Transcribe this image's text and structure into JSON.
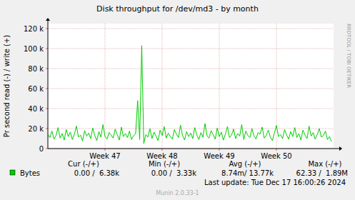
{
  "chart_data": {
    "type": "line",
    "title": "Disk throughput for /dev/md3 - by month",
    "y_label": "Pr second read (-) / write (+)",
    "x": [
      0,
      0.25,
      0.5,
      0.75,
      1,
      1.25,
      1.5,
      1.75,
      2,
      2.25,
      2.5,
      2.75,
      3,
      3.25,
      3.5,
      3.75,
      4,
      4.25,
      4.5,
      4.75,
      5,
      5.25,
      5.5,
      5.75,
      6,
      6.25,
      6.5,
      6.75,
      7,
      7.25,
      7.5,
      7.75,
      8,
      8.25,
      8.5,
      8.75,
      9,
      9.25,
      9.5,
      9.75,
      10,
      10.25,
      10.5,
      10.75,
      11,
      11.25,
      11.5,
      11.75,
      12,
      12.25,
      12.5,
      12.75,
      13,
      13.25,
      13.5,
      13.75,
      14,
      14.25,
      14.5,
      14.75,
      15,
      15.25,
      15.5,
      15.75,
      16,
      16.25,
      16.5,
      16.75,
      17,
      17.25,
      17.5,
      17.75,
      18,
      18.25,
      18.5,
      18.75,
      19,
      19.25,
      19.5,
      19.75,
      20,
      20.25,
      20.5,
      20.75,
      21,
      21.25,
      21.5,
      21.75,
      22,
      22.25,
      22.5,
      22.75,
      23,
      23.25,
      23.5,
      23.75,
      24,
      24.25,
      24.5,
      24.75,
      25,
      25.25,
      25.5,
      25.75,
      26,
      26.25,
      26.5,
      26.75,
      27,
      27.25,
      27.5,
      27.75,
      28,
      28.25,
      28.5,
      28.75,
      29,
      29.25,
      29.5,
      29.75,
      30,
      30.25,
      30.5,
      30.75,
      31,
      31.25,
      31.5,
      31.75,
      32,
      32.25,
      32.5,
      32.75,
      33,
      33.25,
      33.5,
      33.75,
      34,
      34.25,
      34.5,
      34.75
    ],
    "series": [
      {
        "name": "Bytes",
        "color": "#00cc00",
        "values": [
          14000,
          11000,
          17500,
          9500,
          13000,
          21000,
          10500,
          15000,
          8500,
          19000,
          12000,
          16500,
          9000,
          14500,
          22500,
          11500,
          13500,
          7500,
          18000,
          12500,
          15500,
          10000,
          20500,
          13000,
          8000,
          17000,
          11500,
          24000,
          12000,
          9500,
          16000,
          13500,
          10500,
          19500,
          14000,
          8500,
          21500,
          12000,
          15000,
          11000,
          17500,
          9000,
          13000,
          15000,
          48000,
          9000,
          103000,
          5000,
          14000,
          11500,
          20000,
          10000,
          16500,
          12500,
          8000,
          18500,
          13000,
          22000,
          10500,
          15500,
          12000,
          9500,
          19000,
          14500,
          11000,
          23500,
          13000,
          8500,
          17000,
          12000,
          15500,
          10000,
          21000,
          13500,
          9000,
          16000,
          11500,
          25000,
          12500,
          10500,
          18000,
          14000,
          9500,
          20500,
          12000,
          16500,
          8500,
          14500,
          22000,
          11000,
          13500,
          19500,
          10000,
          15000,
          12500,
          24000,
          9000,
          17500,
          13000,
          11000,
          20000,
          12500,
          9500,
          16000,
          14500,
          21500,
          10500,
          13000,
          18500,
          11500,
          8000,
          15500,
          23000,
          12000,
          14000,
          10000,
          19000,
          13500,
          9500,
          17000,
          12000,
          21000,
          11000,
          15000,
          8500,
          18500,
          13500,
          10000,
          22500,
          12500,
          16000,
          9500,
          14000,
          20000,
          11500,
          13000,
          17500,
          9000,
          12000,
          7000
        ]
      }
    ],
    "xlim": [
      0,
      35
    ],
    "xticks": [
      {
        "value": 7,
        "label": "Week 47"
      },
      {
        "value": 14,
        "label": "Week 48"
      },
      {
        "value": 21,
        "label": "Week 49"
      },
      {
        "value": 28,
        "label": "Week 50"
      }
    ],
    "ylim": [
      0,
      125000
    ],
    "yticks": [
      0,
      {
        "value": 20000,
        "label": "20 k"
      },
      {
        "value": 40000,
        "label": "40 k"
      },
      {
        "value": 60000,
        "label": "60 k"
      },
      {
        "value": 80000,
        "label": "80 k"
      },
      {
        "value": 100000,
        "label": "100 k"
      },
      {
        "value": 120000,
        "label": "120 k"
      }
    ],
    "grid": true,
    "summary": {
      "headers": [
        "Cur (-/+)",
        "Min (-/+)",
        "Avg (-/+)",
        "Max (-/+)"
      ],
      "values": [
        "0.00 /  6.38k",
        "0.00 /  3.33k",
        "8.74m/ 13.77k",
        "62.33 /  1.89M"
      ]
    },
    "footer": "Last update: Tue Dec 17 16:00:26 2024",
    "credit": "Munin 2.0.33-1",
    "side_text": "RRDTOOL / TOBI OETIKER"
  }
}
